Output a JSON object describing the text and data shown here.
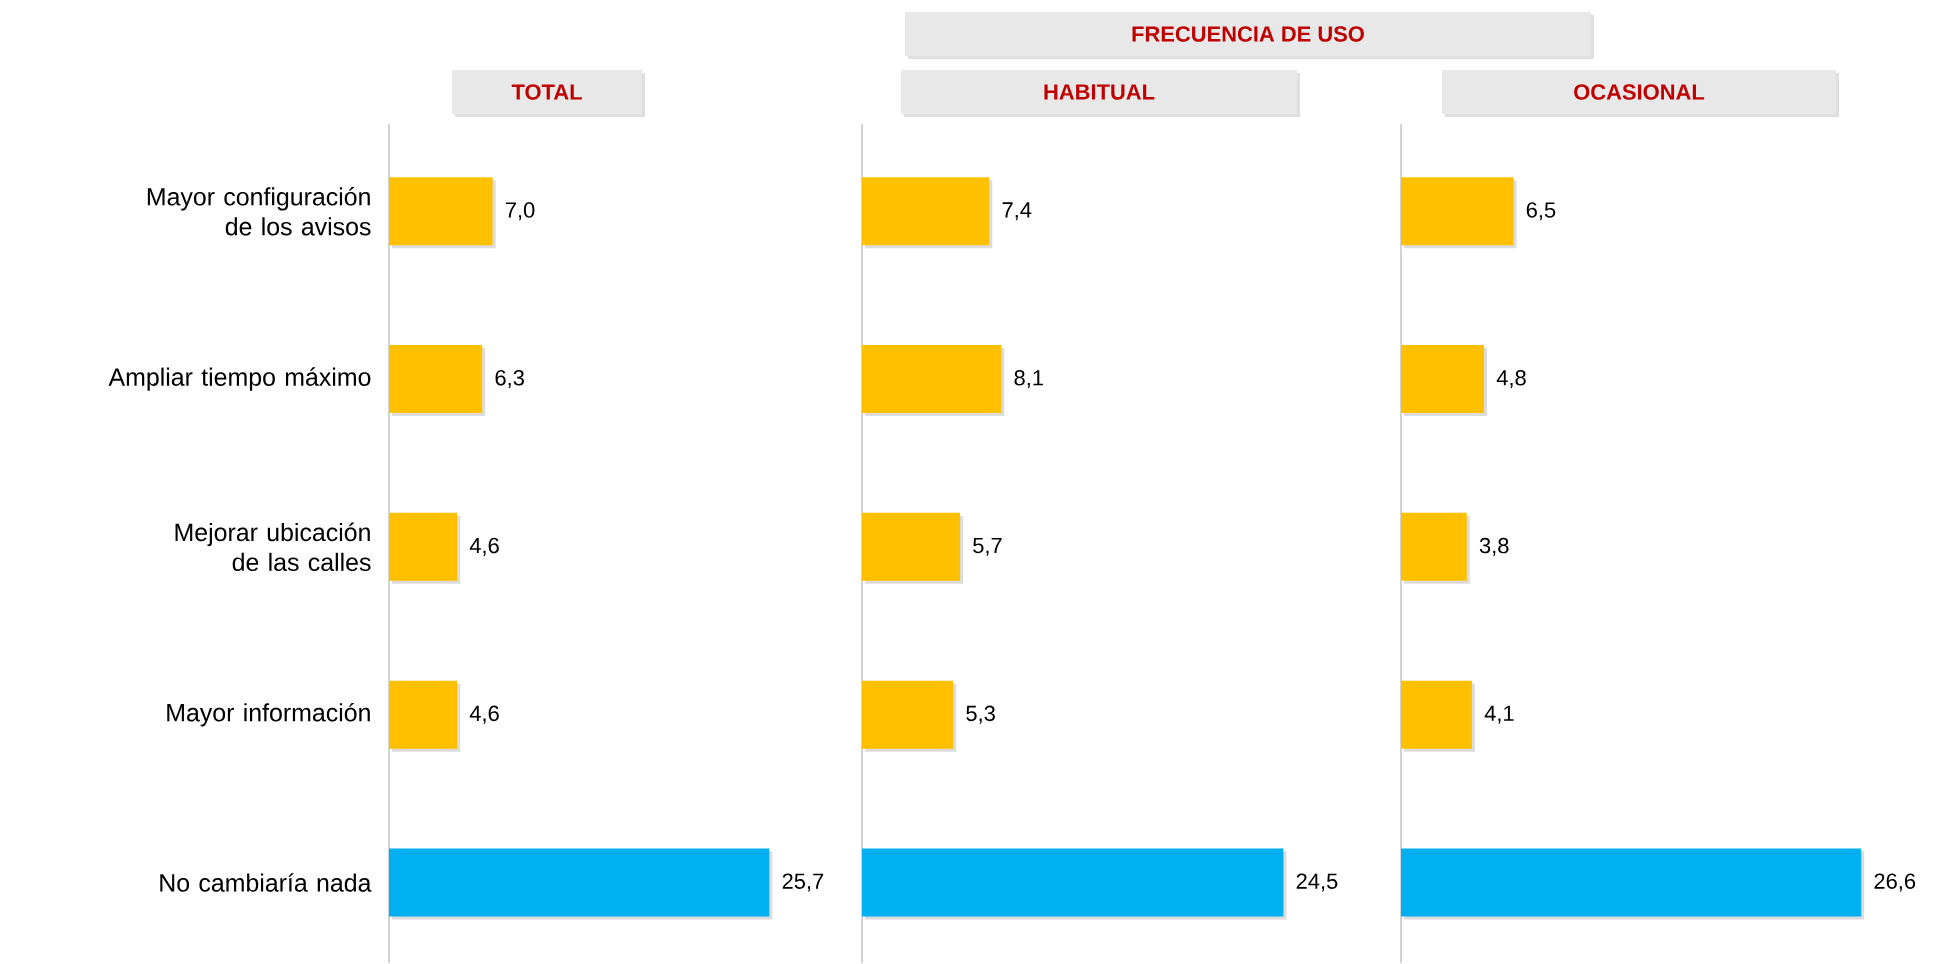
{
  "chart_data": [
    {
      "type": "bar",
      "orientation": "horizontal",
      "title": "TOTAL",
      "categories": [
        "Mayor configuración de los avisos",
        "Ampliar tiempo máximo",
        "Mejorar ubicación de las calles",
        "Mayor información",
        "No cambiaría nada"
      ],
      "values": [
        7.0,
        6.3,
        4.6,
        4.6,
        25.7
      ],
      "value_labels": [
        "7,0",
        "6,3",
        "4,6",
        "4,6",
        "25,7"
      ],
      "colors": [
        "#ffc000",
        "#ffc000",
        "#ffc000",
        "#ffc000",
        "#00b0f0"
      ]
    },
    {
      "type": "bar",
      "orientation": "horizontal",
      "title": "HABITUAL",
      "annotations": [
        "FRECUENCIA DE USO"
      ],
      "values": [
        7.4,
        8.1,
        5.7,
        5.3,
        24.5
      ],
      "value_labels": [
        "7,4",
        "8,1",
        "5,7",
        "5,3",
        "24,5"
      ],
      "colors": [
        "#ffc000",
        "#ffc000",
        "#ffc000",
        "#ffc000",
        "#00b0f0"
      ]
    },
    {
      "type": "bar",
      "orientation": "horizontal",
      "title": "OCASIONAL",
      "values": [
        6.5,
        4.8,
        3.8,
        4.1,
        26.6
      ],
      "value_labels": [
        "6,5",
        "4,8",
        "3,8",
        "4,1",
        "26,6"
      ],
      "colors": [
        "#ffc000",
        "#ffc000",
        "#ffc000",
        "#ffc000",
        "#00b0f0"
      ]
    }
  ]
}
